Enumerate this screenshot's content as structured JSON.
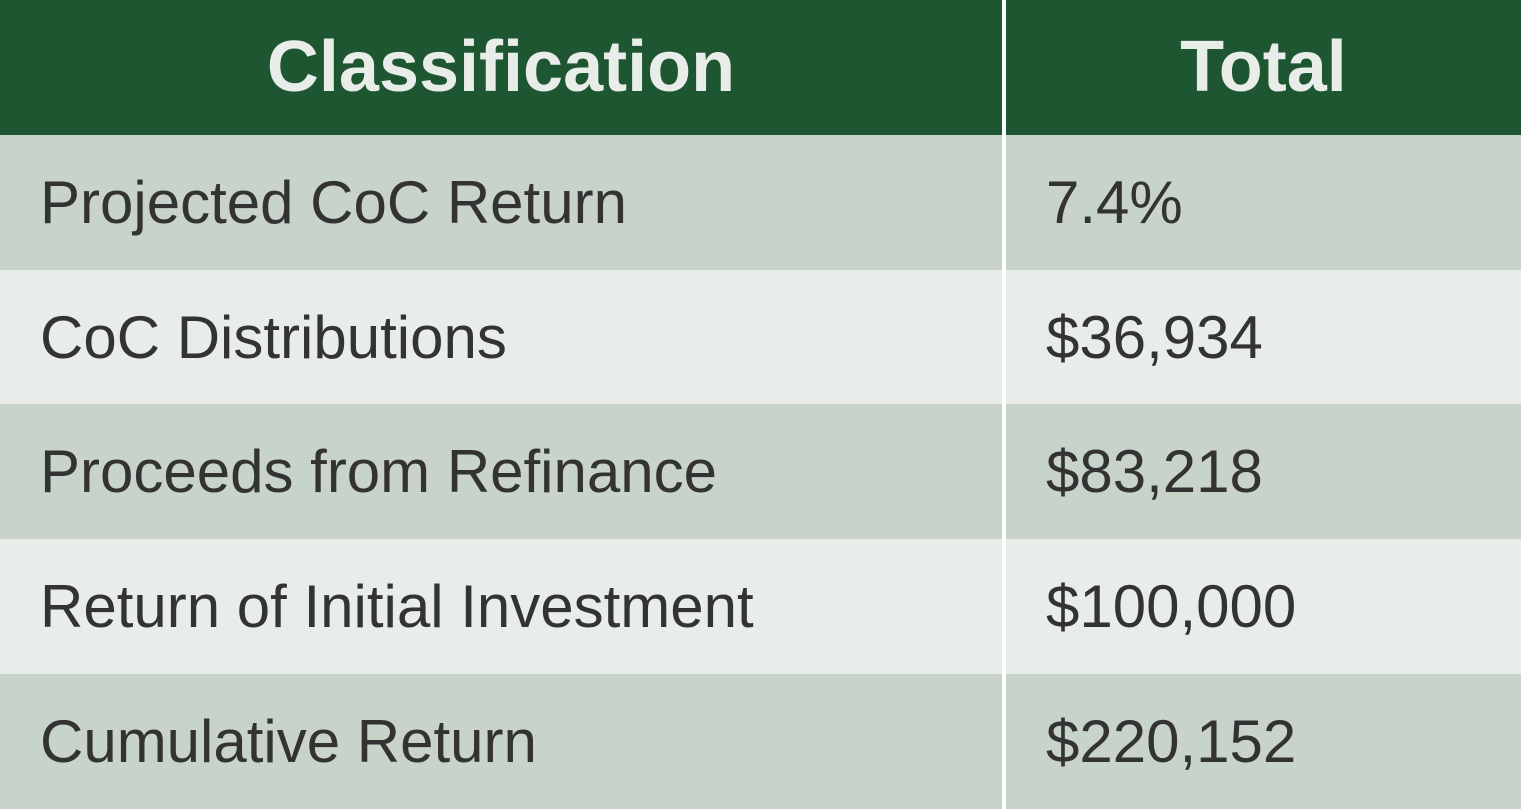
{
  "table": {
    "type": "table",
    "columns": [
      "Classification",
      "Total"
    ],
    "rows": [
      {
        "classification": "Projected CoC Return",
        "total": "7.4%"
      },
      {
        "classification": "CoC Distributions",
        "total": "$36,934"
      },
      {
        "classification": "Proceeds from Refinance",
        "total": "$83,218"
      },
      {
        "classification": "Return of Initial Investment",
        "total": "$100,000"
      },
      {
        "classification": "Cumulative Return",
        "total": "$220,152"
      }
    ],
    "header_bg_color": "#1e5631",
    "header_text_color": "#e8ede9",
    "header_fontsize": 72,
    "header_fontweight": 700,
    "body_text_color": "#333333",
    "body_fontsize": 60,
    "body_fontweight": 400,
    "row_odd_bg_color": "#c8d4ca",
    "row_even_bg_color": "#e8ede9",
    "column_separator_color": "#ffffff",
    "column_separator_width": 4,
    "col_classification_width": 1006,
    "col_total_width": 515
  }
}
